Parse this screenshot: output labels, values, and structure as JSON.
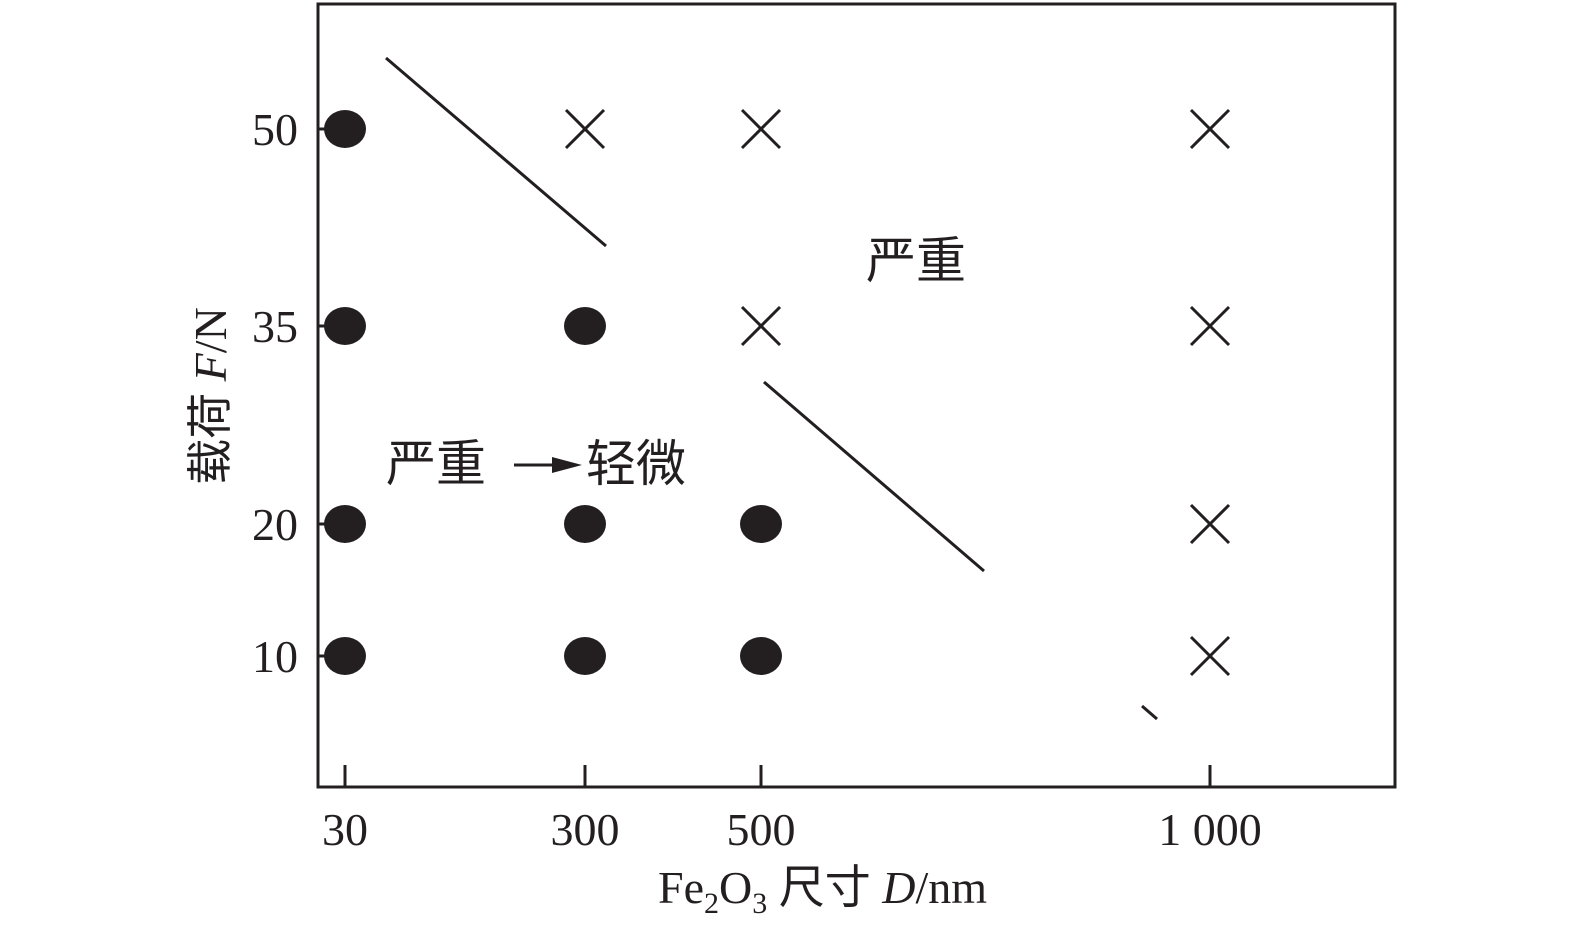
{
  "chart_data": {
    "type": "scatter",
    "title": "",
    "xlabel": {
      "prefix": "Fe",
      "sub1": "2",
      "mid": "O",
      "sub2": "3",
      "cjk": " 尺寸 ",
      "var": "D",
      "unit": "/nm"
    },
    "ylabel": {
      "cjk": "载荷 ",
      "var": "F",
      "unit": "/N"
    },
    "x_ticks": [
      30,
      300,
      500,
      1000
    ],
    "x_tick_labels": [
      "30",
      "300",
      "500",
      "1 000"
    ],
    "y_ticks": [
      10,
      20,
      35,
      50
    ],
    "y_tick_labels": [
      "10",
      "20",
      "35",
      "50"
    ],
    "grid": false,
    "series": [
      {
        "marker": "filled-circle",
        "points": [
          [
            30,
            50
          ],
          [
            30,
            35
          ],
          [
            30,
            20
          ],
          [
            30,
            10
          ],
          [
            300,
            35
          ],
          [
            300,
            20
          ],
          [
            300,
            10
          ],
          [
            500,
            20
          ],
          [
            500,
            10
          ]
        ]
      },
      {
        "marker": "cross",
        "points": [
          [
            300,
            50
          ],
          [
            500,
            50
          ],
          [
            1000,
            50
          ],
          [
            500,
            35
          ],
          [
            1000,
            35
          ],
          [
            1000,
            20
          ],
          [
            1000,
            10
          ]
        ]
      }
    ],
    "annotations": {
      "severe": "严重",
      "transition_from": "严重",
      "transition_to": "轻微"
    },
    "colors": {
      "ink": "#231f20",
      "background": "#ffffff"
    }
  }
}
